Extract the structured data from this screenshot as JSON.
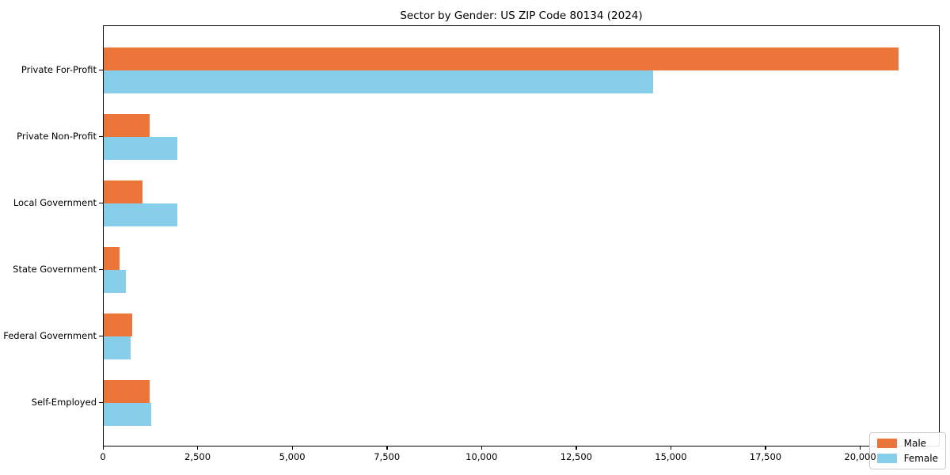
{
  "figure": {
    "background": "#ffffff"
  },
  "chart_data": {
    "type": "bar",
    "orientation": "horizontal",
    "title": "Sector by Gender: US ZIP Code 80134 (2024)",
    "xlabel": "",
    "ylabel": "",
    "categories": [
      "Private For-Profit",
      "Private Non-Profit",
      "Local Government",
      "State Government",
      "Federal Government",
      "Self-Employed"
    ],
    "series": [
      {
        "name": "Male",
        "color": "#ec7639",
        "values": [
          21000,
          1210,
          1020,
          420,
          750,
          1210
        ]
      },
      {
        "name": "Female",
        "color": "#87ceeb",
        "values": [
          14500,
          1950,
          1950,
          590,
          710,
          1250
        ]
      }
    ],
    "xlim": [
      0,
      22100
    ],
    "x_ticks": [
      0,
      2500,
      5000,
      7500,
      10000,
      12500,
      15000,
      17500,
      20000
    ],
    "x_tick_labels": [
      "0",
      "2,500",
      "5,000",
      "7,500",
      "10,000",
      "12,500",
      "15,000",
      "17,500",
      "20,000"
    ],
    "grid": false,
    "legend": {
      "position": "lower right"
    },
    "axis_color": "#000000"
  }
}
